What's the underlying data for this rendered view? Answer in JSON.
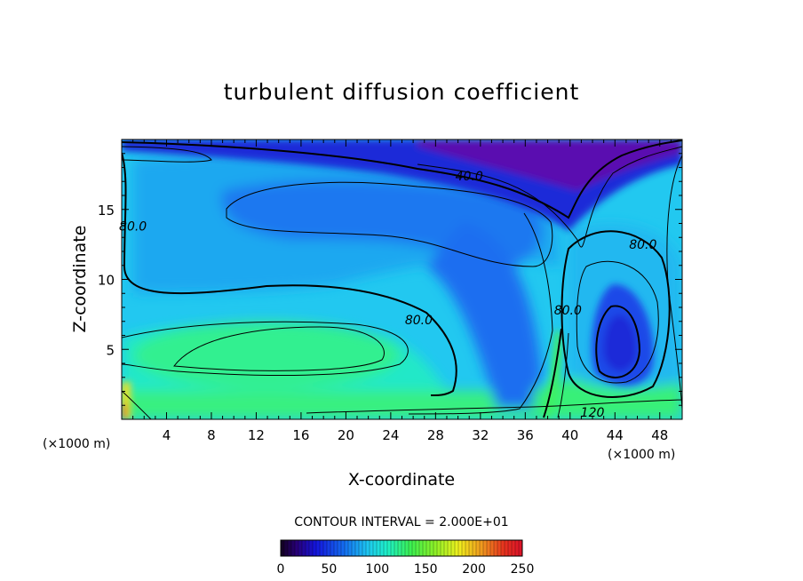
{
  "chart_data": {
    "type": "contour",
    "title": "turbulent diffusion coefficient",
    "xlabel": "X-coordinate",
    "ylabel": "Z-coordinate",
    "x_unit_label": "(×1000 m)",
    "x_unit_label_right": "(×1000 m)",
    "xlim": [
      0,
      50
    ],
    "ylim": [
      0,
      20
    ],
    "x_ticks": [
      4,
      8,
      12,
      16,
      20,
      24,
      28,
      32,
      36,
      40,
      44,
      48
    ],
    "y_ticks": [
      5,
      10,
      15
    ],
    "contour_interval_text": "CONTOUR INTERVAL =  2.000E+01",
    "contour_interval": 20,
    "contour_labels": [
      {
        "text": "40.0",
        "x": 31,
        "y": 17.4
      },
      {
        "text": "80.0",
        "x": 1.0,
        "y": 13.8
      },
      {
        "text": "80.0",
        "x": 26.5,
        "y": 7.1
      },
      {
        "text": "80.0",
        "x": 39.8,
        "y": 7.8
      },
      {
        "text": "80.0",
        "x": 46.5,
        "y": 12.5
      },
      {
        "text": "120",
        "x": 42.0,
        "y": 0.5
      }
    ],
    "colorbar": {
      "min": 0,
      "max": 250,
      "ticks": [
        "0",
        "50",
        "100",
        "150",
        "200",
        "250"
      ]
    },
    "colors": {
      "deep_purple": "#5a00a8",
      "dark_blue": "#1a1ad8",
      "blue": "#1e5cf0",
      "light_blue": "#1aa0f0",
      "cyan": "#22d8f0",
      "cyan_green": "#22f0c8",
      "green": "#40f060",
      "yellow": "#f0f020",
      "orange": "#f08020",
      "red": "#e82020"
    }
  }
}
